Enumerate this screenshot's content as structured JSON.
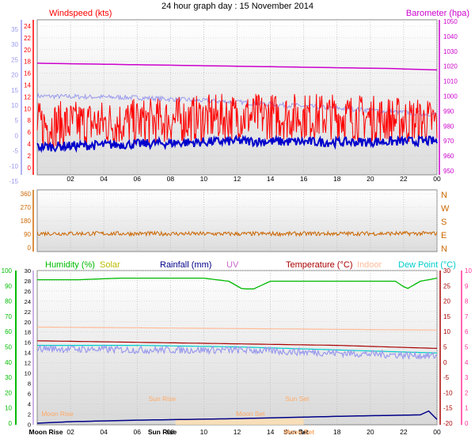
{
  "title": "24 hour graph day : 15 November 2014",
  "colors": {
    "wind": "#ff0000",
    "gust_avg": "#0000cc",
    "baro": "#cc00cc",
    "wind_aux": "#9999ee",
    "direction": "#cc6600",
    "humidity": "#00bb00",
    "solar": "#bbbb00",
    "rain": "#000088",
    "uv": "#cc66cc",
    "temperature": "#aa0000",
    "indoor": "#ffbb99",
    "dewpoint": "#00cccc",
    "apparent": "#9999ee",
    "pink_axis": "#ff3399",
    "sun_moon": "#ffaa66"
  },
  "x_ticks": [
    "02",
    "04",
    "06",
    "08",
    "10",
    "12",
    "14",
    "16",
    "18",
    "20",
    "22",
    "00"
  ],
  "chart_data": [
    {
      "type": "line",
      "name": "wind-baro",
      "left_title": "Windspeed (kts)",
      "right_title": "Barometer (hpa)",
      "left_ticks": [
        "24",
        "22",
        "20",
        "18",
        "16",
        "14",
        "12",
        "10",
        "8",
        "6",
        "4",
        "2",
        "0"
      ],
      "far_left_ticks": [
        "35",
        "30",
        "25",
        "20",
        "15",
        "10",
        "5",
        "0",
        "-5",
        "-10",
        "-15"
      ],
      "right_ticks": [
        "1050",
        "1040",
        "1030",
        "1020",
        "1010",
        "1000",
        "990",
        "980",
        "970",
        "960",
        "950"
      ],
      "ylim_left": [
        0,
        25
      ],
      "ylim_right": [
        945,
        1052
      ],
      "series": [
        {
          "key": "baro",
          "axis": "right",
          "x": [
            0,
            6,
            12,
            18,
            21,
            24
          ],
          "y": [
            1022,
            1021,
            1020,
            1019,
            1018.5,
            1017.5
          ]
        },
        {
          "key": "wind_aux",
          "axis": "far_left",
          "x": [
            0,
            6,
            12,
            18,
            24
          ],
          "y": [
            13,
            12.5,
            11,
            9,
            7
          ],
          "noise": 0.8
        },
        {
          "key": "wind",
          "axis": "left",
          "x": [
            0,
            6,
            12,
            18,
            24
          ],
          "y": [
            6,
            6.5,
            7.5,
            7.5,
            6.5
          ],
          "noise": 4,
          "spiky": true
        },
        {
          "key": "gust_avg",
          "axis": "left",
          "x": [
            0,
            6,
            12,
            18,
            24
          ],
          "y": [
            3.5,
            4,
            4.5,
            4.3,
            4.5
          ],
          "noise": 0.8
        }
      ]
    },
    {
      "type": "line",
      "name": "wind-direction",
      "left_ticks": [
        "360",
        "270",
        "180",
        "90",
        "0"
      ],
      "right_ticks": [
        "N",
        "W",
        "S",
        "E",
        "N"
      ],
      "ylim": [
        0,
        360
      ],
      "series": [
        {
          "key": "direction",
          "x": [
            0,
            12,
            24
          ],
          "y": [
            95,
            92,
            95
          ],
          "noise": 14
        }
      ]
    },
    {
      "type": "line",
      "name": "temp-humidity",
      "legend": [
        "Humidity (%)",
        "Solar",
        "Rainfall (mm)",
        "UV",
        "Temperature (°C)",
        "Indoor",
        "Dew Point (°C)"
      ],
      "humidity_ticks": [
        "100",
        "90",
        "80",
        "70",
        "60",
        "50",
        "40",
        "30",
        "20",
        "10",
        "0"
      ],
      "left_ticks": [
        "30",
        "28",
        "26",
        "24",
        "22",
        "20",
        "18",
        "16",
        "14",
        "12",
        "10",
        "8",
        "6",
        "4",
        "2",
        "0"
      ],
      "right_ticks": [
        "30",
        "25",
        "20",
        "15",
        "10",
        "5",
        "0",
        "-5",
        "-10",
        "-15",
        "-20"
      ],
      "pink_ticks": [
        "10",
        "9",
        "8",
        "7",
        "6",
        "5",
        "4",
        "3",
        "2",
        "1",
        "0"
      ],
      "ylim_humidity": [
        0,
        100
      ],
      "ylim_temp": [
        -20,
        30
      ],
      "series": [
        {
          "key": "humidity",
          "axis": "humidity",
          "x": [
            0,
            2.5,
            5,
            10,
            11.5,
            12.3,
            13,
            14,
            18,
            21.5,
            22.2,
            23,
            24
          ],
          "y": [
            94,
            94,
            95,
            95,
            93,
            88,
            88,
            93,
            93,
            93,
            88,
            93,
            95
          ]
        },
        {
          "key": "indoor",
          "axis": "temp",
          "x": [
            0,
            12,
            24
          ],
          "y": [
            11.5,
            11,
            10.5
          ]
        },
        {
          "key": "temperature",
          "axis": "temp",
          "x": [
            0,
            6,
            12,
            18,
            24
          ],
          "y": [
            7,
            6.5,
            6,
            5.5,
            4.5
          ]
        },
        {
          "key": "dewpoint",
          "axis": "temp",
          "x": [
            0,
            6,
            12,
            18,
            24
          ],
          "y": [
            5.5,
            5.5,
            5,
            4,
            3
          ]
        },
        {
          "key": "apparent",
          "axis": "temp",
          "x": [
            0,
            6,
            12,
            18,
            24
          ],
          "y": [
            4.5,
            4,
            4,
            3,
            2
          ],
          "noise": 1.2
        },
        {
          "key": "rain",
          "axis": "humidity",
          "x": [
            0,
            2,
            6,
            12,
            18,
            23,
            23.5,
            24
          ],
          "y": [
            0,
            1,
            2,
            3,
            4.5,
            5.5,
            8,
            2.5
          ]
        }
      ],
      "annotations": [
        {
          "label": "Moon Rise",
          "x": 0.5
        },
        {
          "label": "Sun Rise",
          "x": 7.5
        },
        {
          "label": "Moon Set",
          "x": 12.8
        },
        {
          "label": "Sun Set",
          "x": 15.6
        }
      ],
      "bottom_labels": [
        "Moon Rise",
        "Sun Rise",
        "Sun Set",
        "Moon Set"
      ]
    }
  ]
}
